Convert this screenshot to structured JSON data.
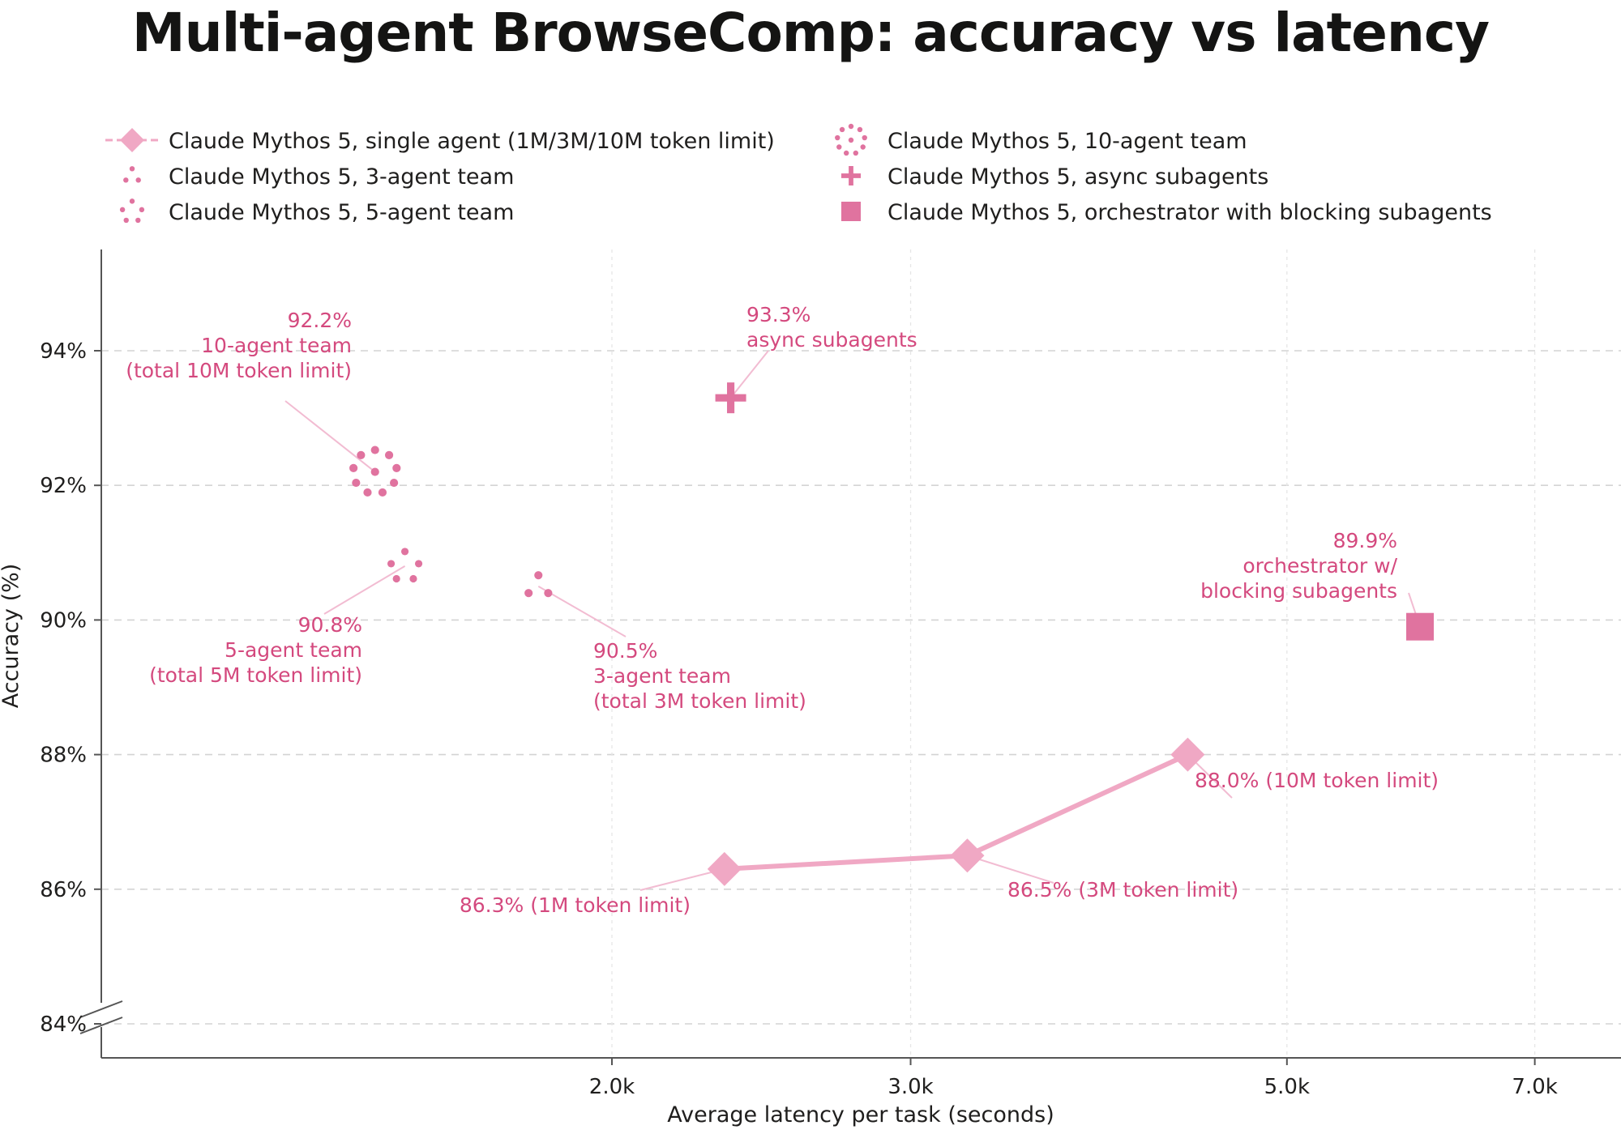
{
  "chart_data": {
    "type": "scatter",
    "title": "Multi-agent BrowseComp: accuracy vs latency",
    "xlabel": "Average latency per task (seconds)",
    "ylabel": "Accuracy (%)",
    "x_scale": "log",
    "xlim": [
      1000,
      7200
    ],
    "ylim": [
      83.5,
      95.5
    ],
    "x_ticks": [
      2000,
      3000,
      5000,
      7000
    ],
    "x_tick_labels": [
      "2.0k",
      "3.0k",
      "5.0k",
      "7.0k"
    ],
    "y_ticks": [
      84,
      86,
      88,
      90,
      92,
      94
    ],
    "y_tick_labels": [
      "84%",
      "86%",
      "88%",
      "90%",
      "92%",
      "94%"
    ],
    "y_axis_break": true,
    "grid": true,
    "legend_position": "top",
    "colors": {
      "single": "#f0a8c4",
      "team": "#e0739f",
      "annotation": "#d4497e",
      "axis": "#555555",
      "grid": "#d4d4d4",
      "leader": "#f2bcd2"
    },
    "series": [
      {
        "name": "Claude Mythos 5, single agent (1M/3M/10M token limit)",
        "marker": "diamond-line",
        "points": [
          {
            "x": 2330,
            "y": 86.3,
            "label": [
              "86.3% (1M token limit)"
            ]
          },
          {
            "x": 3240,
            "y": 86.5,
            "label": [
              "86.5% (3M token limit)"
            ]
          },
          {
            "x": 4370,
            "y": 88.0,
            "label": [
              "88.0% (10M token limit)"
            ]
          }
        ]
      },
      {
        "name": "Claude Mythos 5, 3-agent team",
        "marker": "dots3",
        "points": [
          {
            "x": 1810,
            "y": 90.5,
            "label": [
              "90.5%",
              "3-agent team",
              "(total 3M token limit)"
            ]
          }
        ]
      },
      {
        "name": "Claude Mythos 5, 5-agent team",
        "marker": "dots5",
        "points": [
          {
            "x": 1510,
            "y": 90.8,
            "label": [
              "90.8%",
              "5-agent team",
              "(total 5M token limit)"
            ]
          }
        ]
      },
      {
        "name": "Claude Mythos 5, 10-agent team",
        "marker": "dots10",
        "points": [
          {
            "x": 1450,
            "y": 92.2,
            "label": [
              "92.2%",
              "10-agent team",
              "(total 10M token limit)"
            ]
          }
        ]
      },
      {
        "name": "Claude Mythos 5, async subagents",
        "marker": "plus",
        "points": [
          {
            "x": 2350,
            "y": 93.3,
            "label": [
              "93.3%",
              "async subagents"
            ]
          }
        ]
      },
      {
        "name": "Claude Mythos 5, orchestrator with blocking subagents",
        "marker": "square",
        "points": [
          {
            "x": 5990,
            "y": 89.9,
            "label": [
              "89.9%",
              "orchestrator w/",
              "blocking subagents"
            ]
          }
        ]
      }
    ]
  }
}
